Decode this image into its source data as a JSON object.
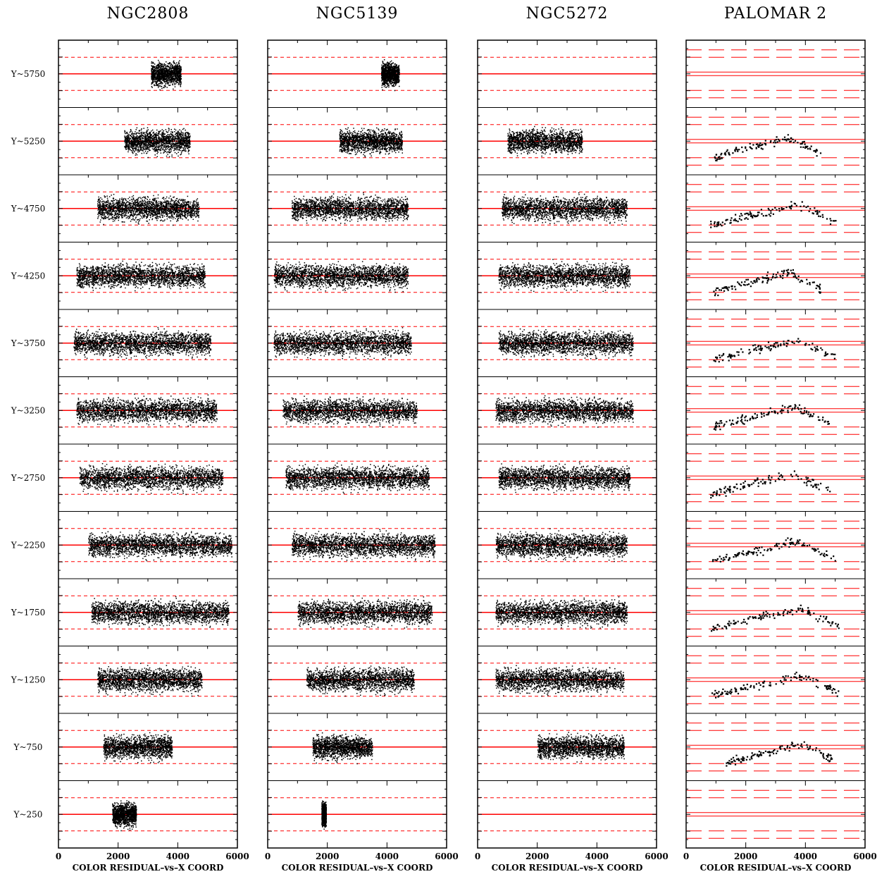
{
  "chart_data": {
    "type": "scatter",
    "panels": [
      {
        "title": "NGC2808",
        "style": "dots",
        "marker_color": "#000000"
      },
      {
        "title": "NGC5139",
        "style": "dots",
        "marker_color": "#000000"
      },
      {
        "title": "NGC5272",
        "style": "dots",
        "marker_color": "#000000"
      },
      {
        "title": "PALOMAR 2",
        "style": "sparse",
        "marker_color": "#000000"
      }
    ],
    "row_labels": [
      "Y~5750",
      "Y~5250",
      "Y~4750",
      "Y~4250",
      "Y~3750",
      "Y~3250",
      "Y~2750",
      "Y~2250",
      "Y~1750",
      "Y~1250",
      "Y~750",
      "Y~250"
    ],
    "xlim": [
      0,
      6000
    ],
    "x_ticks": [
      0,
      2000,
      4000,
      6000
    ],
    "xlabel": "COLOR RESIDUAL–vs–X COORD",
    "reference_lines": {
      "solid_color": "#ff0000",
      "dashed_color": "#ff0000"
    },
    "point_extents": {
      "NGC2808": [
        [
          3100,
          4100
        ],
        [
          2200,
          4400
        ],
        [
          1300,
          4700
        ],
        [
          600,
          4900
        ],
        [
          500,
          5100
        ],
        [
          600,
          5300
        ],
        [
          700,
          5500
        ],
        [
          1000,
          5800
        ],
        [
          1100,
          5700
        ],
        [
          1300,
          4800
        ],
        [
          1500,
          3800
        ],
        [
          1800,
          2600
        ]
      ],
      "NGC5139": [
        [
          3800,
          4400
        ],
        [
          2400,
          4500
        ],
        [
          800,
          4700
        ],
        [
          200,
          4700
        ],
        [
          200,
          4800
        ],
        [
          500,
          5000
        ],
        [
          600,
          5400
        ],
        [
          800,
          5600
        ],
        [
          1000,
          5500
        ],
        [
          1300,
          4900
        ],
        [
          1500,
          3500
        ],
        [
          1800,
          1950
        ]
      ],
      "NGC5272": [
        null,
        [
          1000,
          3500
        ],
        [
          800,
          5000
        ],
        [
          700,
          5100
        ],
        [
          700,
          5200
        ],
        [
          600,
          5200
        ],
        [
          700,
          5100
        ],
        [
          600,
          5000
        ],
        [
          600,
          5000
        ],
        [
          600,
          4900
        ],
        [
          2000,
          4900
        ],
        null
      ],
      "PALOMAR 2": [
        null,
        [
          900,
          4500
        ],
        [
          800,
          5000
        ],
        [
          900,
          4500
        ],
        [
          900,
          5000
        ],
        [
          900,
          4800
        ],
        [
          800,
          4800
        ],
        [
          800,
          5000
        ],
        [
          800,
          5100
        ],
        [
          800,
          5100
        ],
        [
          1300,
          4900
        ],
        null
      ]
    }
  }
}
